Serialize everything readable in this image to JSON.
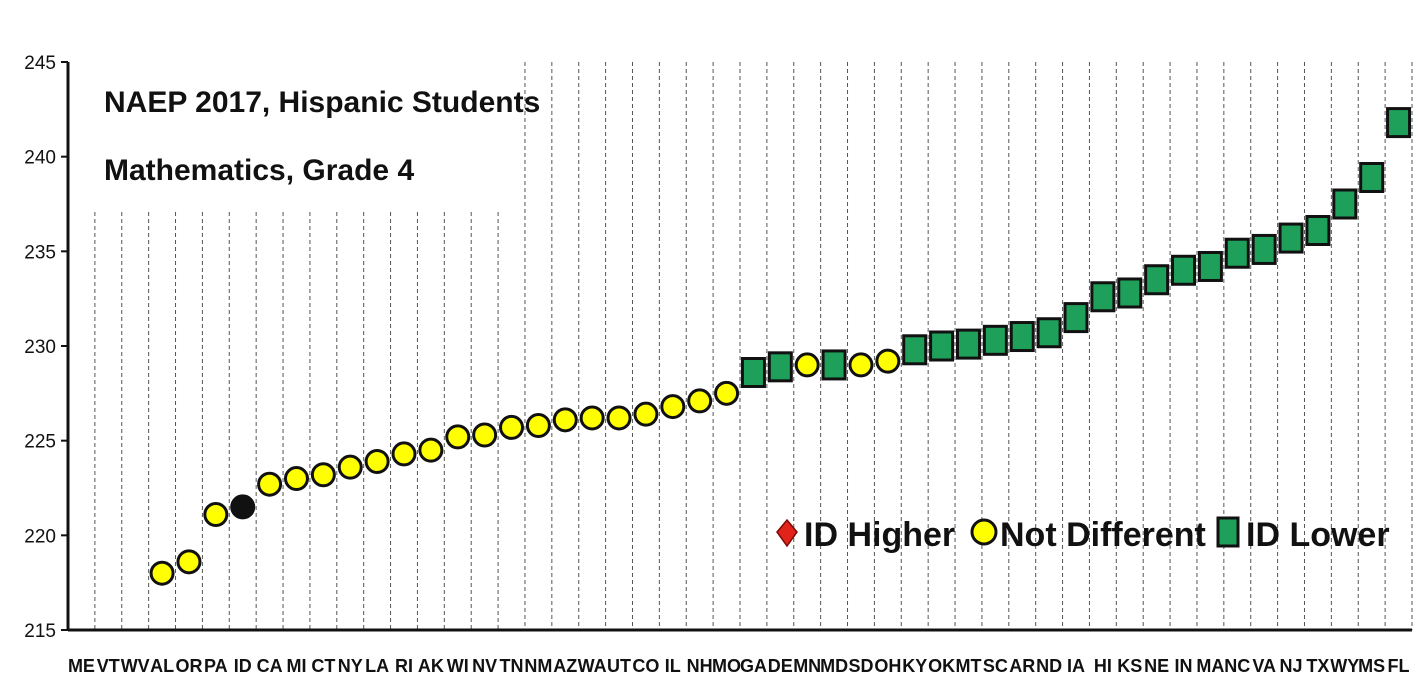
{
  "chart_data": {
    "type": "scatter",
    "title": "NAEP 2017, Hispanic Students",
    "subtitle": "Mathematics, Grade 4",
    "ylim": [
      215,
      245
    ],
    "yticks": [
      215,
      220,
      225,
      230,
      235,
      240,
      245
    ],
    "grid": "vertical dashed",
    "categories": [
      "ME",
      "VT",
      "WV",
      "AL",
      "OR",
      "PA",
      "ID",
      "CA",
      "MI",
      "CT",
      "NY",
      "LA",
      "RI",
      "AK",
      "WI",
      "NV",
      "TN",
      "NM",
      "AZ",
      "WA",
      "UT",
      "CO",
      "IL",
      "NH",
      "MO",
      "GA",
      "DE",
      "MN",
      "MD",
      "SD",
      "OH",
      "KY",
      "OK",
      "MT",
      "SC",
      "AR",
      "ND",
      "IA",
      "HI",
      "KS",
      "NE",
      "IN",
      "MA",
      "NC",
      "VA",
      "NJ",
      "TX",
      "WY",
      "MS",
      "FL"
    ],
    "points": [
      {
        "state": "AL",
        "value": 218.0,
        "group": "Not Different"
      },
      {
        "state": "OR",
        "value": 218.6,
        "group": "Not Different"
      },
      {
        "state": "PA",
        "value": 221.1,
        "group": "Not Different"
      },
      {
        "state": "ID",
        "value": 221.5,
        "group": "ID"
      },
      {
        "state": "CA",
        "value": 222.7,
        "group": "Not Different"
      },
      {
        "state": "MI",
        "value": 223.0,
        "group": "Not Different"
      },
      {
        "state": "CT",
        "value": 223.2,
        "group": "Not Different"
      },
      {
        "state": "NY",
        "value": 223.6,
        "group": "Not Different"
      },
      {
        "state": "LA",
        "value": 223.9,
        "group": "Not Different"
      },
      {
        "state": "RI",
        "value": 224.3,
        "group": "Not Different"
      },
      {
        "state": "AK",
        "value": 224.5,
        "group": "Not Different"
      },
      {
        "state": "WI",
        "value": 225.2,
        "group": "Not Different"
      },
      {
        "state": "NV",
        "value": 225.3,
        "group": "Not Different"
      },
      {
        "state": "TN",
        "value": 225.7,
        "group": "Not Different"
      },
      {
        "state": "NM",
        "value": 225.8,
        "group": "Not Different"
      },
      {
        "state": "AZ",
        "value": 226.1,
        "group": "Not Different"
      },
      {
        "state": "WA",
        "value": 226.2,
        "group": "Not Different"
      },
      {
        "state": "UT",
        "value": 226.2,
        "group": "Not Different"
      },
      {
        "state": "CO",
        "value": 226.4,
        "group": "Not Different"
      },
      {
        "state": "IL",
        "value": 226.8,
        "group": "Not Different"
      },
      {
        "state": "NH",
        "value": 227.1,
        "group": "Not Different"
      },
      {
        "state": "MO",
        "value": 227.5,
        "group": "Not Different"
      },
      {
        "state": "GA",
        "value": 228.6,
        "group": "ID Lower"
      },
      {
        "state": "DE",
        "value": 228.9,
        "group": "ID Lower"
      },
      {
        "state": "MN",
        "value": 229.0,
        "group": "Not Different"
      },
      {
        "state": "MD",
        "value": 229.0,
        "group": "ID Lower"
      },
      {
        "state": "SD",
        "value": 229.0,
        "group": "Not Different"
      },
      {
        "state": "OH",
        "value": 229.2,
        "group": "Not Different"
      },
      {
        "state": "KY",
        "value": 229.8,
        "group": "ID Lower"
      },
      {
        "state": "OK",
        "value": 230.0,
        "group": "ID Lower"
      },
      {
        "state": "MT",
        "value": 230.1,
        "group": "ID Lower"
      },
      {
        "state": "SC",
        "value": 230.3,
        "group": "ID Lower"
      },
      {
        "state": "AR",
        "value": 230.5,
        "group": "ID Lower"
      },
      {
        "state": "ND",
        "value": 230.7,
        "group": "ID Lower"
      },
      {
        "state": "IA",
        "value": 231.5,
        "group": "ID Lower"
      },
      {
        "state": "HI",
        "value": 232.6,
        "group": "ID Lower"
      },
      {
        "state": "KS",
        "value": 232.8,
        "group": "ID Lower"
      },
      {
        "state": "NE",
        "value": 233.5,
        "group": "ID Lower"
      },
      {
        "state": "IN",
        "value": 234.0,
        "group": "ID Lower"
      },
      {
        "state": "MA",
        "value": 234.2,
        "group": "ID Lower"
      },
      {
        "state": "NC",
        "value": 234.9,
        "group": "ID Lower"
      },
      {
        "state": "VA",
        "value": 235.1,
        "group": "ID Lower"
      },
      {
        "state": "NJ",
        "value": 235.7,
        "group": "ID Lower"
      },
      {
        "state": "TX",
        "value": 236.1,
        "group": "ID Lower"
      },
      {
        "state": "WY",
        "value": 237.5,
        "group": "ID Lower"
      },
      {
        "state": "MS",
        "value": 238.9,
        "group": "ID Lower"
      },
      {
        "state": "FL",
        "value": 241.8,
        "group": "ID Lower"
      }
    ],
    "legend": {
      "position": "bottom-right",
      "items": [
        {
          "label": "ID Higher",
          "marker": "diamond",
          "color": "#e2231a"
        },
        {
          "label": "Not Different",
          "marker": "circle",
          "color": "#ffff00"
        },
        {
          "label": "ID Lower",
          "marker": "square",
          "color": "#1fa05a"
        }
      ]
    },
    "colors": {
      "ID": "#111111",
      "Not Different": "#ffff00",
      "ID Lower": "#1fa05a",
      "ID Higher": "#e2231a"
    }
  }
}
